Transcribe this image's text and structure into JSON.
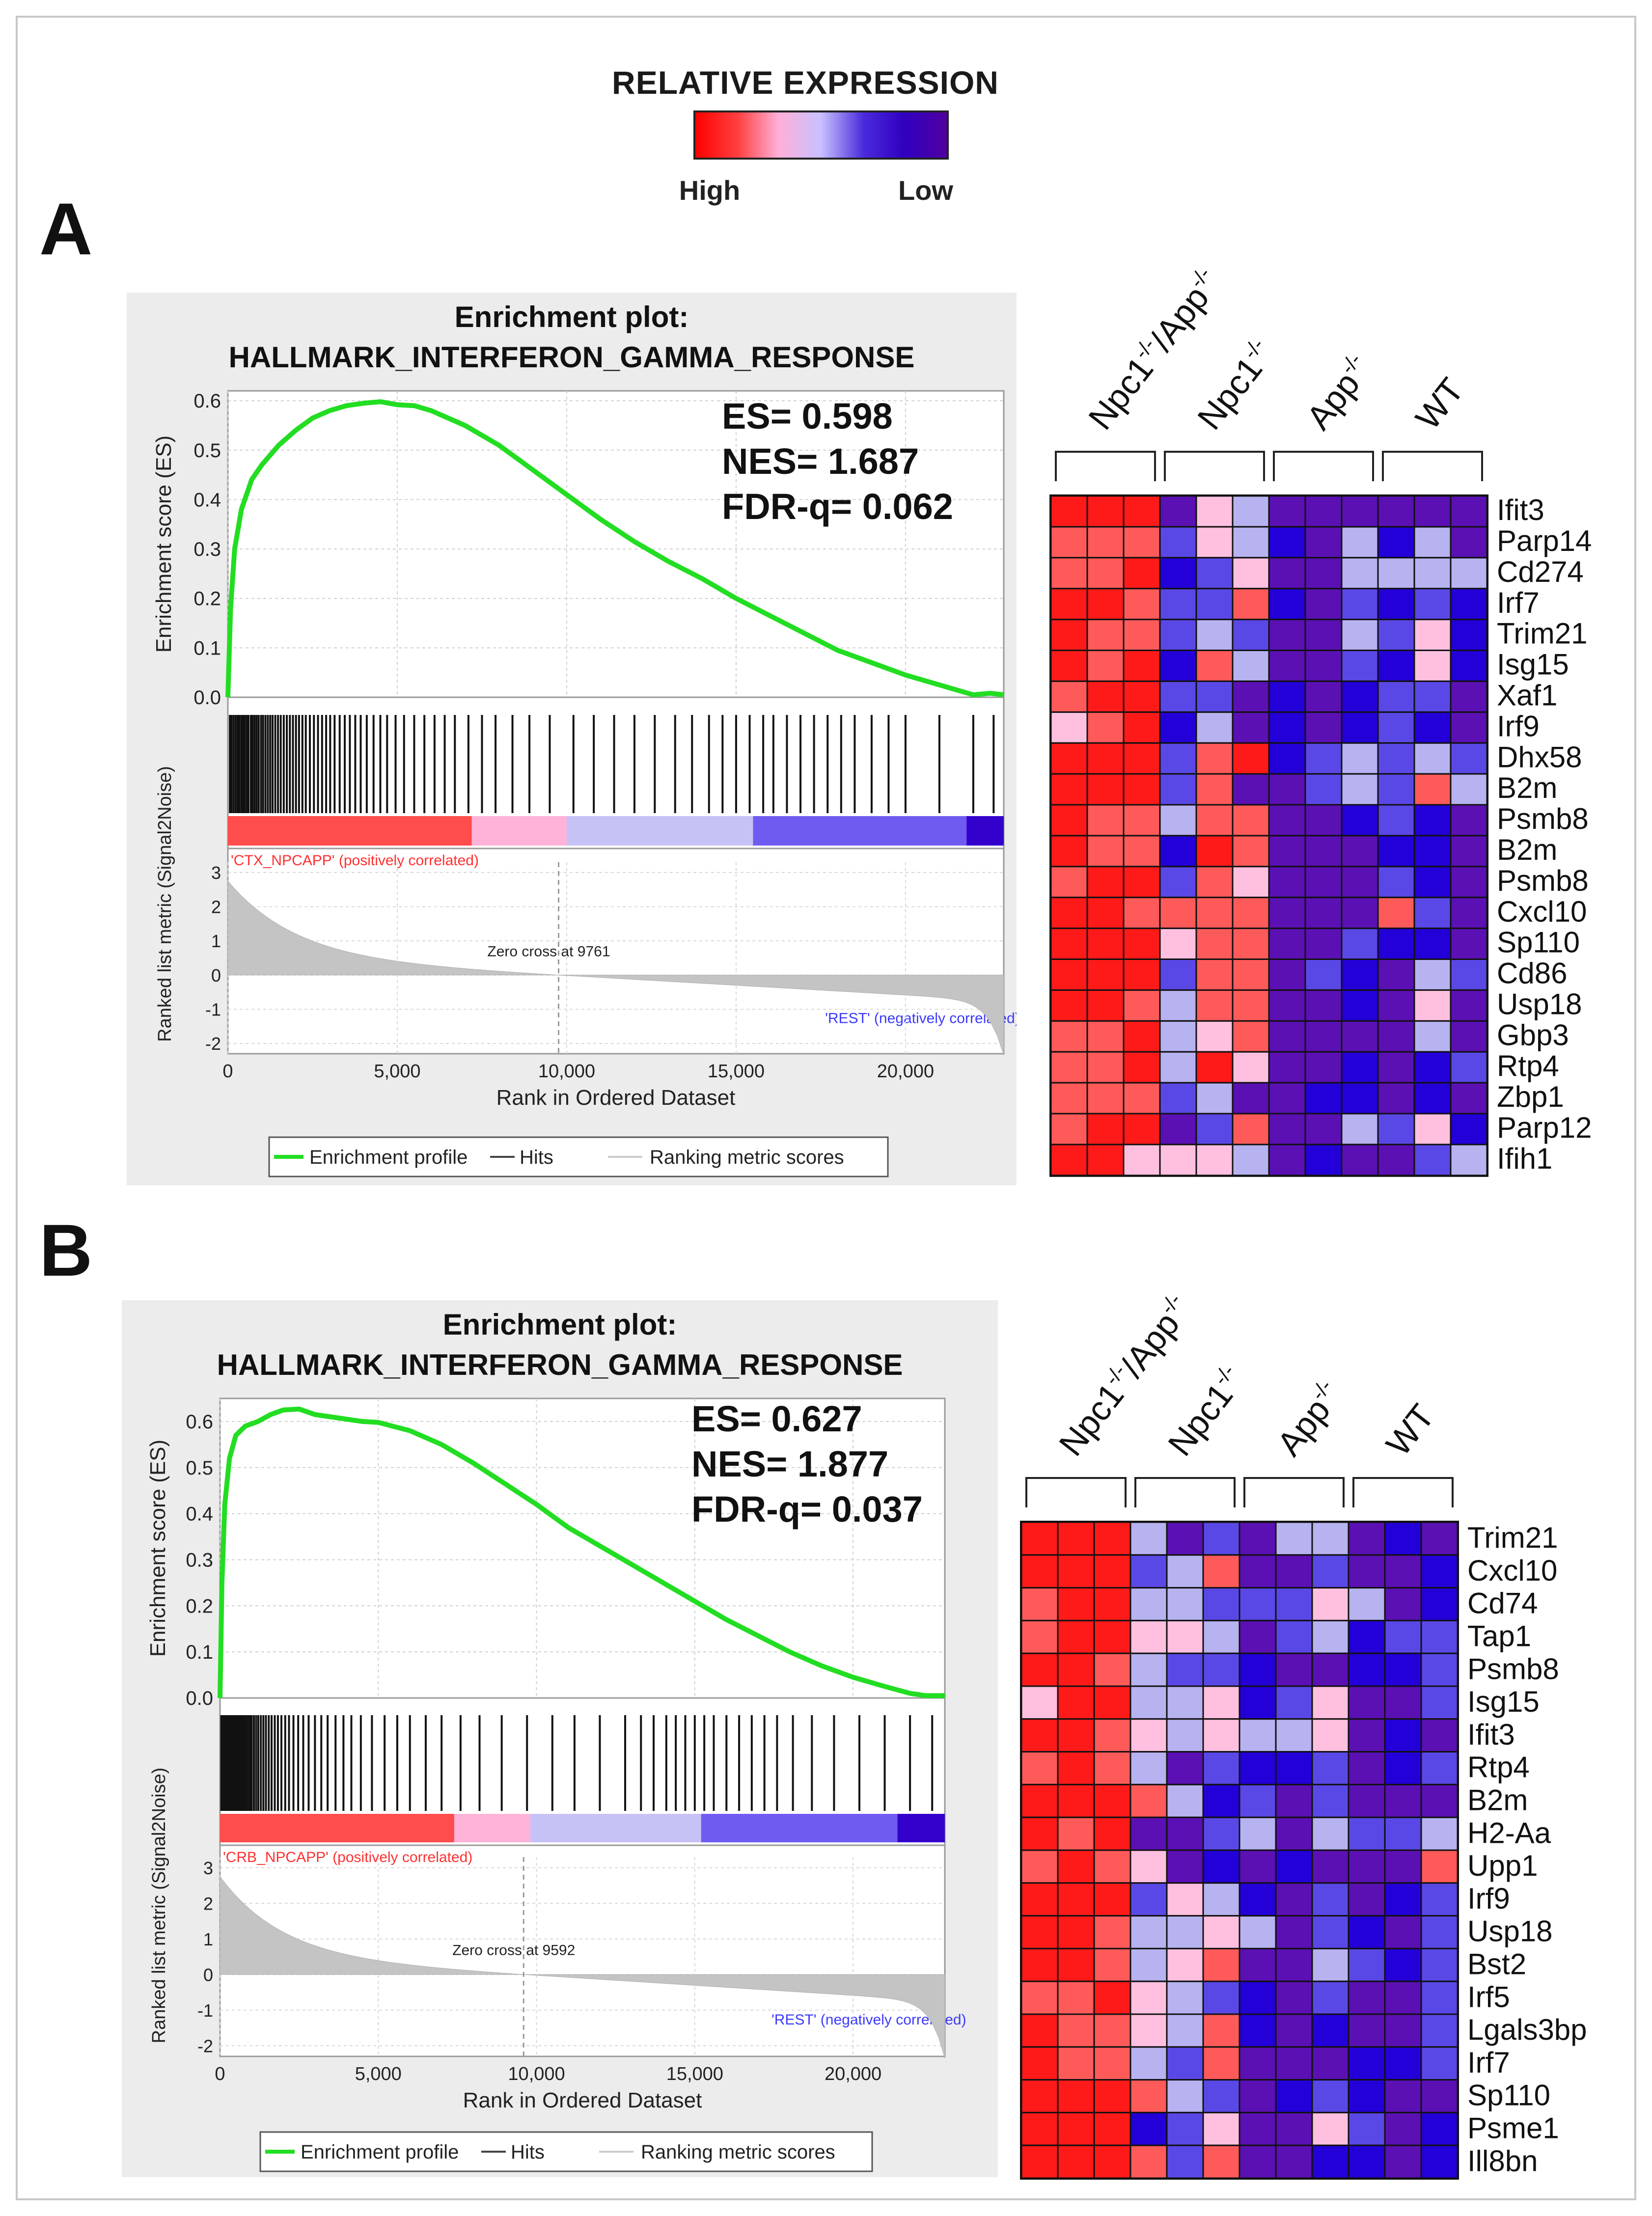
{
  "legend": {
    "title": "RELATIVE EXPRESSION",
    "high_label": "High",
    "low_label": "Low",
    "gradient_colors": [
      "#ff0000",
      "#ff4040",
      "#ffb0d8",
      "#c8c0ff",
      "#4a2adc",
      "#3000c0",
      "#5000a0"
    ]
  },
  "colors": {
    "curve": "#22dd22",
    "zero_fill": "#c4c4c4",
    "bg_panel": "#ececec",
    "hm_palette": {
      "r": "#ff1a1a",
      "o": "#ff5a5a",
      "p": "#ffc0e0",
      "l": "#b7b2f0",
      "m": "#5a48e6",
      "b": "#2400d8",
      "d": "#5b10b4"
    }
  },
  "chart_data": [
    {
      "id": "A",
      "panel_letter": "A",
      "type": "line",
      "title_line1": "Enrichment plot:",
      "title_line2": "HALLMARK_INTERFERON_GAMMA_RESPONSE",
      "stats": [
        "ES= 0.598",
        "NES= 1.687",
        "FDR-q= 0.062"
      ],
      "ylabel": "Enrichment score (ES)",
      "ylabel2": "Ranked list metric (Signal2Noise)",
      "xlabel": "Rank in Ordered Dataset",
      "xlim": [
        0,
        22900
      ],
      "ylim": [
        0,
        0.62
      ],
      "yticks": [
        "0.6",
        "0.5",
        "0.4",
        "0.3",
        "0.2",
        "0.1",
        "0.0"
      ],
      "ytick_values": [
        0.6,
        0.5,
        0.4,
        0.3,
        0.2,
        0.1,
        0.0
      ],
      "xticks": [
        "0",
        "5,000",
        "10,000",
        "15,000",
        "20,000"
      ],
      "xtick_values": [
        0,
        5000,
        10000,
        15000,
        20000
      ],
      "metric_yticks": [
        "3",
        "2",
        "1",
        "0",
        "-1",
        "-2"
      ],
      "metric_ytick_values": [
        3,
        2,
        1,
        0,
        -1,
        -2
      ],
      "metric_ylim": [
        -2.3,
        3.3
      ],
      "zero_cross": 9761,
      "zero_cross_label": "Zero cross at 9761",
      "pos_label": "'CTX_NPCAPP' (positively correlated)",
      "neg_label": "'REST' (negatively correlated)",
      "legend_items": [
        "Enrichment profile",
        "Hits",
        "Ranking metric scores"
      ],
      "es_curve_x": [
        0,
        80,
        200,
        400,
        700,
        1000,
        1500,
        2000,
        2500,
        3000,
        3500,
        4000,
        4500,
        5000,
        5500,
        6000,
        7000,
        8000,
        9000,
        10000,
        11000,
        12000,
        13000,
        14000,
        15000,
        16000,
        17000,
        18000,
        19000,
        20000,
        21000,
        21500,
        22000,
        22500,
        22900
      ],
      "es_curve_y": [
        0.0,
        0.18,
        0.3,
        0.38,
        0.44,
        0.47,
        0.51,
        0.54,
        0.565,
        0.58,
        0.59,
        0.595,
        0.598,
        0.592,
        0.59,
        0.58,
        0.55,
        0.51,
        0.46,
        0.41,
        0.36,
        0.315,
        0.275,
        0.24,
        0.2,
        0.165,
        0.13,
        0.095,
        0.07,
        0.045,
        0.025,
        0.015,
        0.005,
        0.008,
        0.005
      ],
      "hits": [
        60,
        110,
        170,
        230,
        290,
        340,
        400,
        450,
        500,
        560,
        610,
        680,
        730,
        790,
        850,
        910,
        980,
        1040,
        1110,
        1180,
        1250,
        1320,
        1400,
        1480,
        1560,
        1650,
        1740,
        1830,
        1920,
        2010,
        2100,
        2200,
        2300,
        2420,
        2540,
        2660,
        2780,
        2900,
        3020,
        3150,
        3300,
        3450,
        3600,
        3760,
        3920,
        4100,
        4300,
        4500,
        4700,
        4950,
        5200,
        5500,
        5800,
        6100,
        6400,
        6700,
        7100,
        7500,
        7900,
        8400,
        8900,
        9500,
        10200,
        10800,
        11400,
        12000,
        12600,
        13200,
        13700,
        14200,
        14600,
        15000,
        15400,
        15800,
        16100,
        16500,
        16900,
        17300,
        17700,
        18100,
        18500,
        19000,
        19500,
        20000,
        21000,
        22000,
        22600
      ],
      "rank_bar_segments": [
        {
          "to": 7200,
          "color": "#ff4d4d"
        },
        {
          "to": 10000,
          "color": "#ffb3d9"
        },
        {
          "to": 15500,
          "color": "#c7c2f5"
        },
        {
          "to": 21800,
          "color": "#6f5bf0"
        },
        {
          "to": 22900,
          "color": "#3300cc"
        }
      ]
    },
    {
      "id": "B",
      "panel_letter": "B",
      "type": "line",
      "title_line1": "Enrichment plot:",
      "title_line2": "HALLMARK_INTERFERON_GAMMA_RESPONSE",
      "stats": [
        "ES= 0.627",
        "NES= 1.877",
        "FDR-q= 0.037"
      ],
      "ylabel": "Enrichment score (ES)",
      "ylabel2": "Ranked list metric (Signal2Noise)",
      "xlabel": "Rank in Ordered Dataset",
      "xlim": [
        0,
        22900
      ],
      "ylim": [
        0,
        0.65
      ],
      "yticks": [
        "0.6",
        "0.5",
        "0.4",
        "0.3",
        "0.2",
        "0.1",
        "0.0"
      ],
      "ytick_values": [
        0.6,
        0.5,
        0.4,
        0.3,
        0.2,
        0.1,
        0.0
      ],
      "xticks": [
        "0",
        "5,000",
        "10,000",
        "15,000",
        "20,000"
      ],
      "xtick_values": [
        0,
        5000,
        10000,
        15000,
        20000
      ],
      "metric_yticks": [
        "3",
        "2",
        "1",
        "0",
        "-1",
        "-2"
      ],
      "metric_ytick_values": [
        3,
        2,
        1,
        0,
        -1,
        -2
      ],
      "metric_ylim": [
        -2.3,
        3.3
      ],
      "zero_cross": 9592,
      "zero_cross_label": "Zero cross at 9592",
      "pos_label": "'CRB_NPCAPP' (positively correlated)",
      "neg_label": "'REST' (negatively correlated)",
      "legend_items": [
        "Enrichment profile",
        "Hits",
        "Ranking metric scores"
      ],
      "es_curve_x": [
        0,
        60,
        150,
        300,
        500,
        800,
        1200,
        1600,
        2000,
        2500,
        3000,
        3500,
        4000,
        4500,
        5000,
        6000,
        7000,
        8000,
        9000,
        10000,
        11000,
        12000,
        13000,
        14000,
        15000,
        16000,
        17000,
        18000,
        19000,
        20000,
        21000,
        21800,
        22300,
        22900
      ],
      "es_curve_y": [
        0.0,
        0.25,
        0.42,
        0.52,
        0.57,
        0.59,
        0.6,
        0.615,
        0.625,
        0.627,
        0.615,
        0.61,
        0.605,
        0.6,
        0.598,
        0.58,
        0.55,
        0.51,
        0.465,
        0.42,
        0.37,
        0.33,
        0.29,
        0.25,
        0.21,
        0.17,
        0.135,
        0.1,
        0.07,
        0.045,
        0.025,
        0.01,
        0.005,
        0.005
      ],
      "hits": [
        40,
        80,
        120,
        160,
        200,
        240,
        280,
        320,
        360,
        400,
        440,
        480,
        520,
        560,
        600,
        650,
        700,
        760,
        820,
        880,
        940,
        1000,
        1070,
        1140,
        1210,
        1290,
        1370,
        1450,
        1540,
        1630,
        1730,
        1830,
        1940,
        2060,
        2180,
        2320,
        2470,
        2630,
        2800,
        3000,
        3200,
        3400,
        3650,
        3900,
        4150,
        4450,
        4800,
        5200,
        5600,
        6000,
        6500,
        7000,
        7600,
        8200,
        8900,
        9700,
        10500,
        11200,
        12000,
        12800,
        13300,
        13700,
        14100,
        14400,
        14700,
        15000,
        15300,
        15600,
        16000,
        16400,
        16800,
        17200,
        17600,
        18100,
        18700,
        19400,
        20200,
        21000,
        21800,
        22500
      ],
      "rank_bar_segments": [
        {
          "to": 7400,
          "color": "#ff4d4d"
        },
        {
          "to": 9800,
          "color": "#ffb3d9"
        },
        {
          "to": 15200,
          "color": "#c7c2f5"
        },
        {
          "to": 21400,
          "color": "#6f5bf0"
        },
        {
          "to": 22900,
          "color": "#3300cc"
        }
      ]
    }
  ],
  "heatmaps": [
    {
      "id": "A",
      "groups": [
        "Npc1-/-/App-/-",
        "Npc1-/-",
        "App-/-",
        "WT"
      ],
      "group_labels": [
        {
          "base": "Npc1",
          "sup": "-/-",
          "mid": "/App",
          "sup2": "-/-"
        },
        {
          "base": "Npc1",
          "sup": "-/-",
          "mid": "",
          "sup2": ""
        },
        {
          "base": "App",
          "sup": "-/-",
          "mid": "",
          "sup2": ""
        },
        {
          "base": "WT",
          "sup": "",
          "mid": "",
          "sup2": ""
        }
      ],
      "genes": [
        "Ifit3",
        "Parp14",
        "Cd274",
        "Irf7",
        "Trim21",
        "Isg15",
        "Xaf1",
        "Irf9",
        "Dhx58",
        "B2m",
        "Psmb8",
        "B2m",
        "Psmb8",
        "Cxcl10",
        "Sp110",
        "Cd86",
        "Usp18",
        "Gbp3",
        "Rtp4",
        "Zbp1",
        "Parp12",
        "Ifih1"
      ],
      "cells": [
        "rrrdpldddddd",
        "ooomplbdlbld",
        "oorbmpddllll",
        "rrommobdmbmb",
        "roomlmddlmpb",
        "rorbolddmbpb",
        "orrmmdbdbmmd",
        "porbldbdbmbd",
        "rrrmorbmlmlm",
        "rrrmoddmlmol",
        "roolooddbmbd",
        "roobrodddbbd",
        "orrmopdddmbd",
        "rroooodddomd",
        "rrrpooddmbbd",
        "rrrmoodmbdlm",
        "rrolooddbdpd",
        "oorlpoddddld",
        "oorlrpddbdbm",
        "ooomlddbbdbd",
        "orrdmoddlmpb",
        "rrpppldbddml"
      ]
    },
    {
      "id": "B",
      "groups": [
        "Npc1-/-/App-/-",
        "Npc1-/-",
        "App-/-",
        "WT"
      ],
      "group_labels": [
        {
          "base": "Npc1",
          "sup": "-/-",
          "mid": "/App",
          "sup2": "-/-"
        },
        {
          "base": "Npc1",
          "sup": "-/-",
          "mid": "",
          "sup2": ""
        },
        {
          "base": "App",
          "sup": "-/-",
          "mid": "",
          "sup2": ""
        },
        {
          "base": "WT",
          "sup": "",
          "mid": "",
          "sup2": ""
        }
      ],
      "genes": [
        "Trim21",
        "Cxcl10",
        "Cd74",
        "Tap1",
        "Psmb8",
        "Isg15",
        "Ifit3",
        "Rtp4",
        "B2m",
        "H2-Aa",
        "Upp1",
        "Irf9",
        "Usp18",
        "Bst2",
        "Irf5",
        "Lgals3bp",
        "Irf7",
        "Sp110",
        "Psme1",
        "Ill8bn"
      ],
      "cells": [
        "rrrldmdlldbd",
        "rrrmloddmddb",
        "orrllmmmpldb",
        "orrppldmlbmm",
        "rrolmmbddbbm",
        "prrllpbmpddm",
        "rroplpllpdbd",
        "oroldmbbmdbm",
        "rrrolbmdmddd",
        "rorddmldlmml",
        "oropdbdbdddo",
        "rrrmplbdmdbm",
        "rrollpldmbdm",
        "rrolpoddlmbm",
        "oorplmbdmddm",
        "rooplobdbddm",
        "roolmodddbbm",
        "rrrolmdbmbdd",
        "rrrbmpddpmdb",
        "rrromoddbbdb"
      ]
    }
  ]
}
